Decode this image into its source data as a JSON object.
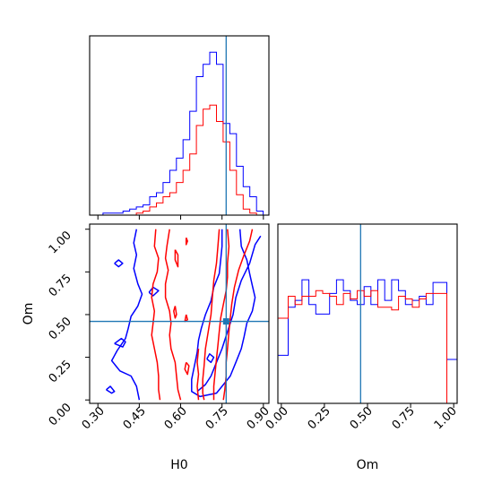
{
  "colors": {
    "series_a": "#0000ff",
    "series_b": "#ff0000",
    "truth": "#1f77b4",
    "axes": "#000000"
  },
  "chart_data": [
    {
      "panel": "H0 marginal",
      "type": "histogram",
      "x_range": [
        0.27,
        0.92
      ],
      "truth_x": 0.765,
      "x_ticks": [
        0.3,
        0.45,
        0.6,
        0.75,
        0.9
      ],
      "tick_labels_shown": false,
      "bin_edges": [
        0.27,
        0.2942,
        0.3184,
        0.3426,
        0.3668,
        0.391,
        0.4152,
        0.4394,
        0.4636,
        0.4878,
        0.512,
        0.5362,
        0.5604,
        0.5846,
        0.6088,
        0.633,
        0.6572,
        0.6814,
        0.7056,
        0.7298,
        0.754,
        0.7782,
        0.8024,
        0.8266,
        0.8508,
        0.875,
        0.8992,
        0.92
      ],
      "series": [
        {
          "color": "blue",
          "values": [
            0,
            0,
            1,
            1,
            1,
            2,
            3,
            4,
            5,
            9,
            11,
            16,
            22,
            28,
            37,
            51,
            68,
            74,
            80,
            74,
            45,
            40,
            24,
            14,
            9,
            2,
            0
          ]
        },
        {
          "color": "red",
          "values": [
            0,
            0,
            0,
            0,
            0,
            0,
            0,
            1,
            2,
            4,
            6,
            9,
            11,
            16,
            22,
            30,
            44,
            52,
            54,
            46,
            36,
            22,
            10,
            3,
            1,
            0,
            0
          ]
        }
      ]
    },
    {
      "panel": "H0 vs Om joint",
      "type": "contour",
      "xlabel": "H0",
      "ylabel": "Om",
      "x_range": [
        0.27,
        0.92
      ],
      "y_range": [
        -0.02,
        1.03
      ],
      "x_ticks": [
        0.3,
        0.45,
        0.6,
        0.75,
        0.9
      ],
      "x_tick_labels": [
        "0.30",
        "0.45",
        "0.60",
        "0.75",
        "0.90"
      ],
      "y_ticks": [
        0.0,
        0.25,
        0.5,
        0.75,
        1.0
      ],
      "y_tick_labels": [
        "0.00",
        "0.25",
        "0.50",
        "0.75",
        "1.00"
      ],
      "truth": [
        0.765,
        0.46
      ],
      "contours": [
        {
          "color": "blue",
          "points": [
            [
              0.44,
              1.0
            ],
            [
              0.43,
              0.92
            ],
            [
              0.44,
              0.85
            ],
            [
              0.43,
              0.77
            ],
            [
              0.445,
              0.68
            ],
            [
              0.46,
              0.62
            ],
            [
              0.445,
              0.55
            ],
            [
              0.42,
              0.49
            ],
            [
              0.41,
              0.42
            ],
            [
              0.4,
              0.36
            ],
            [
              0.37,
              0.29
            ],
            [
              0.35,
              0.23
            ],
            [
              0.38,
              0.17
            ],
            [
              0.42,
              0.14
            ],
            [
              0.44,
              0.08
            ],
            [
              0.45,
              0.0
            ]
          ]
        },
        {
          "color": "blue",
          "points": [
            [
              0.815,
              1.0
            ],
            [
              0.82,
              0.9
            ],
            [
              0.84,
              0.82
            ],
            [
              0.85,
              0.74
            ],
            [
              0.86,
              0.67
            ],
            [
              0.87,
              0.6
            ],
            [
              0.86,
              0.52
            ],
            [
              0.84,
              0.45
            ],
            [
              0.83,
              0.37
            ],
            [
              0.82,
              0.3
            ],
            [
              0.8,
              0.22
            ],
            [
              0.78,
              0.14
            ],
            [
              0.75,
              0.08
            ],
            [
              0.73,
              0.04
            ],
            [
              0.67,
              0.02
            ],
            [
              0.64,
              0.05
            ],
            [
              0.64,
              0.12
            ],
            [
              0.65,
              0.2
            ],
            [
              0.66,
              0.28
            ],
            [
              0.665,
              0.35
            ],
            [
              0.675,
              0.42
            ],
            [
              0.69,
              0.5
            ],
            [
              0.71,
              0.58
            ],
            [
              0.72,
              0.66
            ],
            [
              0.74,
              0.74
            ],
            [
              0.745,
              0.82
            ],
            [
              0.75,
              0.9
            ],
            [
              0.75,
              1.0
            ]
          ]
        },
        {
          "color": "blue",
          "points": [
            [
              0.89,
              0.96
            ],
            [
              0.87,
              0.91
            ],
            [
              0.85,
              0.8
            ],
            [
              0.82,
              0.7
            ],
            [
              0.8,
              0.6
            ],
            [
              0.79,
              0.5
            ],
            [
              0.77,
              0.4
            ],
            [
              0.75,
              0.3
            ],
            [
              0.73,
              0.22
            ],
            [
              0.71,
              0.14
            ],
            [
              0.69,
              0.09
            ],
            [
              0.66,
              0.05
            ]
          ]
        },
        {
          "color": "blue",
          "points": [
            [
              0.33,
              0.06
            ],
            [
              0.35,
              0.04
            ],
            [
              0.36,
              0.05
            ],
            [
              0.345,
              0.08
            ],
            [
              0.33,
              0.06
            ]
          ]
        },
        {
          "color": "blue",
          "points": [
            [
              0.36,
              0.8
            ],
            [
              0.375,
              0.78
            ],
            [
              0.39,
              0.8
            ],
            [
              0.375,
              0.82
            ],
            [
              0.36,
              0.8
            ]
          ]
        },
        {
          "color": "blue",
          "points": [
            [
              0.36,
              0.33
            ],
            [
              0.39,
              0.31
            ],
            [
              0.4,
              0.34
            ],
            [
              0.385,
              0.36
            ],
            [
              0.36,
              0.33
            ]
          ]
        },
        {
          "color": "blue",
          "points": [
            [
              0.485,
              0.63
            ],
            [
              0.5,
              0.61
            ],
            [
              0.52,
              0.64
            ],
            [
              0.5,
              0.66
            ],
            [
              0.485,
              0.63
            ]
          ]
        },
        {
          "color": "blue",
          "points": [
            [
              0.695,
              0.24
            ],
            [
              0.71,
              0.22
            ],
            [
              0.72,
              0.25
            ],
            [
              0.705,
              0.27
            ],
            [
              0.695,
              0.24
            ]
          ]
        },
        {
          "color": "red",
          "points": [
            [
              0.51,
              1.0
            ],
            [
              0.505,
              0.9
            ],
            [
              0.52,
              0.83
            ],
            [
              0.515,
              0.75
            ],
            [
              0.5,
              0.68
            ],
            [
              0.495,
              0.6
            ],
            [
              0.505,
              0.52
            ],
            [
              0.5,
              0.45
            ],
            [
              0.495,
              0.38
            ],
            [
              0.505,
              0.3
            ],
            [
              0.515,
              0.22
            ],
            [
              0.52,
              0.14
            ],
            [
              0.52,
              0.06
            ],
            [
              0.525,
              0.0
            ]
          ]
        },
        {
          "color": "red",
          "points": [
            [
              0.56,
              1.0
            ],
            [
              0.55,
              0.9
            ],
            [
              0.545,
              0.83
            ],
            [
              0.555,
              0.76
            ],
            [
              0.545,
              0.68
            ],
            [
              0.545,
              0.6
            ],
            [
              0.56,
              0.52
            ],
            [
              0.565,
              0.45
            ],
            [
              0.56,
              0.38
            ],
            [
              0.565,
              0.3
            ],
            [
              0.58,
              0.22
            ],
            [
              0.585,
              0.14
            ],
            [
              0.59,
              0.06
            ],
            [
              0.6,
              0.0
            ]
          ]
        },
        {
          "color": "red",
          "points": [
            [
              0.58,
              0.88
            ],
            [
              0.59,
              0.85
            ],
            [
              0.59,
              0.78
            ],
            [
              0.58,
              0.82
            ],
            [
              0.58,
              0.88
            ]
          ]
        },
        {
          "color": "red",
          "points": [
            [
              0.58,
              0.55
            ],
            [
              0.585,
              0.5
            ],
            [
              0.58,
              0.48
            ],
            [
              0.575,
              0.52
            ],
            [
              0.58,
              0.55
            ]
          ]
        },
        {
          "color": "red",
          "points": [
            [
              0.62,
              0.95
            ],
            [
              0.625,
              0.93
            ],
            [
              0.62,
              0.91
            ],
            [
              0.62,
              0.95
            ]
          ]
        },
        {
          "color": "red",
          "points": [
            [
              0.62,
              0.5
            ],
            [
              0.625,
              0.47
            ],
            [
              0.615,
              0.46
            ],
            [
              0.62,
              0.5
            ]
          ]
        },
        {
          "color": "red",
          "points": [
            [
              0.62,
              0.22
            ],
            [
              0.63,
              0.2
            ],
            [
              0.625,
              0.15
            ],
            [
              0.615,
              0.18
            ],
            [
              0.62,
              0.22
            ]
          ]
        },
        {
          "color": "red",
          "points": [
            [
              0.74,
              1.0
            ],
            [
              0.735,
              0.9
            ],
            [
              0.73,
              0.8
            ],
            [
              0.72,
              0.7
            ],
            [
              0.715,
              0.6
            ],
            [
              0.71,
              0.5
            ],
            [
              0.7,
              0.4
            ],
            [
              0.69,
              0.3
            ],
            [
              0.685,
              0.2
            ],
            [
              0.68,
              0.12
            ],
            [
              0.68,
              0.04
            ],
            [
              0.685,
              0.0
            ]
          ]
        },
        {
          "color": "red",
          "points": [
            [
              0.77,
              1.0
            ],
            [
              0.775,
              0.9
            ],
            [
              0.77,
              0.8
            ],
            [
              0.77,
              0.72
            ],
            [
              0.765,
              0.64
            ],
            [
              0.755,
              0.56
            ],
            [
              0.745,
              0.48
            ],
            [
              0.74,
              0.4
            ],
            [
              0.735,
              0.32
            ],
            [
              0.73,
              0.24
            ],
            [
              0.725,
              0.16
            ],
            [
              0.72,
              0.08
            ],
            [
              0.72,
              0.0
            ]
          ]
        },
        {
          "color": "red",
          "points": [
            [
              0.86,
              1.0
            ],
            [
              0.85,
              0.93
            ],
            [
              0.83,
              0.85
            ],
            [
              0.81,
              0.76
            ],
            [
              0.795,
              0.66
            ],
            [
              0.785,
              0.56
            ],
            [
              0.78,
              0.48
            ],
            [
              0.775,
              0.4
            ],
            [
              0.77,
              0.3
            ],
            [
              0.765,
              0.22
            ],
            [
              0.765,
              0.14
            ],
            [
              0.76,
              0.06
            ],
            [
              0.755,
              0.0
            ]
          ]
        },
        {
          "color": "red",
          "points": [
            [
              0.665,
              0.0
            ],
            [
              0.66,
              0.08
            ],
            [
              0.665,
              0.15
            ],
            [
              0.66,
              0.22
            ],
            [
              0.665,
              0.3
            ]
          ]
        }
      ]
    },
    {
      "panel": "Om marginal",
      "type": "histogram",
      "xlabel": "Om",
      "x_range": [
        -0.02,
        1.02
      ],
      "truth_x": 0.46,
      "x_ticks": [
        0.0,
        0.25,
        0.5,
        0.75,
        1.0
      ],
      "x_tick_labels": [
        "0.00",
        "0.25",
        "0.50",
        "0.75",
        "1.00"
      ],
      "bin_edges": [
        -0.02,
        0.0,
        0.04,
        0.08,
        0.12,
        0.16,
        0.2,
        0.24,
        0.28,
        0.32,
        0.36,
        0.4,
        0.44,
        0.48,
        0.52,
        0.56,
        0.6,
        0.64,
        0.68,
        0.72,
        0.76,
        0.8,
        0.84,
        0.88,
        0.92,
        0.96,
        1.0,
        1.02
      ],
      "series": [
        {
          "color": "blue",
          "values": [
            35,
            35,
            70,
            75,
            90,
            72,
            65,
            65,
            80,
            90,
            82,
            75,
            72,
            85,
            72,
            90,
            75,
            90,
            82,
            72,
            75,
            78,
            72,
            88,
            88,
            32,
            32
          ]
        },
        {
          "color": "red",
          "values": [
            62,
            62,
            78,
            72,
            78,
            78,
            82,
            80,
            78,
            72,
            80,
            76,
            82,
            78,
            82,
            70,
            70,
            68,
            78,
            76,
            70,
            76,
            80,
            80,
            80,
            0,
            0
          ]
        }
      ]
    }
  ]
}
